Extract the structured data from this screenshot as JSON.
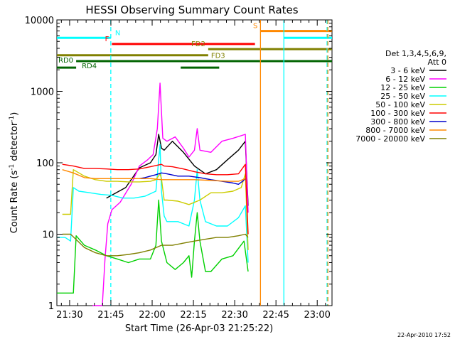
{
  "chart_data": {
    "type": "line",
    "title": "HESSI Observing Summary Count Rates",
    "xlabel": "Start Time (26-Apr-03 21:25:22)",
    "ylabel": "Count Rate (s⁻¹ detector⁻¹)",
    "ylabel_parts": [
      "Count Rate (s",
      "-1",
      " detector",
      "-1",
      ")"
    ],
    "x_unit": "minutes since 21:25:22",
    "xlim": [
      0,
      100
    ],
    "ylim": [
      1,
      10000
    ],
    "yscale": "log",
    "grid": false,
    "x_ticks": [
      {
        "value": 4.63,
        "label": "21:30"
      },
      {
        "value": 19.63,
        "label": "21:45"
      },
      {
        "value": 34.63,
        "label": "22:00"
      },
      {
        "value": 49.63,
        "label": "22:15"
      },
      {
        "value": 64.63,
        "label": "22:30"
      },
      {
        "value": 79.63,
        "label": "22:45"
      },
      {
        "value": 94.63,
        "label": "23:00"
      }
    ],
    "y_ticks": [
      {
        "value": 1,
        "label": "1"
      },
      {
        "value": 10,
        "label": "10"
      },
      {
        "value": 100,
        "label": "100"
      },
      {
        "value": 1000,
        "label": "1000"
      },
      {
        "value": 10000,
        "label": "10000"
      }
    ],
    "legend": {
      "placement": "right",
      "header": [
        "Det 1,3,4,5,6,9,",
        "Att 0"
      ]
    },
    "series": [
      {
        "name": "3 - 6 keV",
        "color": "#000000",
        "x": [
          18,
          25,
          30,
          34,
          36,
          37,
          38,
          39,
          42,
          46,
          50,
          54,
          58,
          62,
          66,
          68.5,
          69.5
        ],
        "y": [
          32,
          45,
          85,
          100,
          130,
          250,
          160,
          150,
          200,
          140,
          90,
          70,
          80,
          110,
          150,
          200,
          25
        ]
      },
      {
        "name": "6 - 12 keV",
        "color": "#ff00ff",
        "x": [
          13,
          16.5,
          17.5,
          18.5,
          20,
          23,
          27,
          30,
          33,
          35,
          36.5,
          37.5,
          38.5,
          40,
          43,
          46,
          48,
          50,
          51,
          52,
          56,
          60,
          64,
          68.5,
          69.5
        ],
        "y": [
          1,
          1,
          4.5,
          14,
          22,
          28,
          50,
          90,
          110,
          130,
          300,
          1300,
          220,
          200,
          230,
          160,
          120,
          150,
          300,
          150,
          140,
          200,
          220,
          250,
          20
        ]
      },
      {
        "name": "12 - 25 keV",
        "color": "#00d000",
        "x": [
          0,
          6,
          7,
          10,
          14,
          18,
          22,
          26,
          30,
          34,
          36,
          37,
          38,
          40,
          43,
          46,
          48,
          49,
          50,
          51,
          52,
          54,
          56,
          60,
          64,
          68,
          69.5
        ],
        "y": [
          1.5,
          1.5,
          9.5,
          7,
          6,
          5,
          4.5,
          4,
          4.5,
          4.5,
          7,
          30,
          8,
          4,
          3.2,
          4,
          5,
          2.5,
          8,
          20,
          8,
          3,
          3,
          4.5,
          5,
          8,
          3
        ]
      },
      {
        "name": "25 - 50 keV",
        "color": "#00ffff",
        "x": [
          0,
          3,
          5,
          6,
          8,
          12,
          16,
          20,
          24,
          28,
          32,
          36,
          37.5,
          38,
          39,
          40,
          44,
          48,
          50,
          51,
          52,
          54,
          58,
          62,
          66,
          68.5,
          69.5
        ],
        "y": [
          9,
          9,
          8,
          45,
          40,
          38,
          36,
          35,
          32,
          32,
          34,
          40,
          180,
          40,
          18,
          15,
          15,
          13,
          30,
          80,
          30,
          15,
          13,
          13,
          17,
          25,
          4
        ]
      },
      {
        "name": "50 - 100 keV",
        "color": "#cccc00",
        "x": [
          2,
          5,
          6,
          10,
          14,
          18,
          22,
          26,
          30,
          34,
          36,
          37.5,
          38,
          39,
          40,
          44,
          48,
          52,
          56,
          60,
          64,
          67,
          68.5,
          69.5
        ],
        "y": [
          19,
          19,
          80,
          65,
          58,
          55,
          55,
          54,
          54,
          55,
          58,
          70,
          60,
          30,
          30,
          29,
          26,
          30,
          38,
          38,
          40,
          45,
          70,
          6
        ]
      },
      {
        "name": "100 - 300 keV",
        "color": "#ff0000",
        "x": [
          2,
          6,
          10,
          14,
          18,
          22,
          26,
          30,
          34,
          38,
          39,
          42,
          46,
          50,
          54,
          58,
          62,
          66,
          68.5,
          69.5
        ],
        "y": [
          95,
          90,
          83,
          83,
          82,
          80,
          80,
          82,
          88,
          95,
          90,
          88,
          82,
          75,
          70,
          68,
          68,
          70,
          95,
          10
        ]
      },
      {
        "name": "300 - 800 keV",
        "color": "#0000cc",
        "x": [
          30,
          32,
          34,
          36,
          38,
          40,
          44,
          48,
          52,
          56,
          60,
          64,
          66,
          67.5,
          68.5
        ],
        "y": [
          60,
          62,
          65,
          68,
          72,
          70,
          65,
          65,
          62,
          58,
          55,
          52,
          50,
          55,
          60
        ]
      },
      {
        "name": "800 - 7000 keV",
        "color": "#ff8800",
        "x": [
          2,
          6,
          10,
          14,
          18,
          22,
          26,
          30,
          34,
          38,
          42,
          46,
          50,
          54,
          58,
          62,
          66,
          68.5
        ],
        "y": [
          80,
          72,
          62,
          60,
          60,
          60,
          60,
          60,
          60,
          58,
          58,
          58,
          58,
          57,
          56,
          55,
          55,
          60
        ]
      },
      {
        "name": "7000 - 20000 keV",
        "color": "#808000",
        "x": [
          2,
          5,
          10,
          14,
          18,
          22,
          26,
          30,
          34,
          38,
          42,
          46,
          50,
          54,
          58,
          62,
          66,
          68.5,
          69.5
        ],
        "y": [
          10,
          10,
          6.5,
          5.5,
          5,
          5,
          5.2,
          5.5,
          6,
          7,
          7,
          7.5,
          8,
          8.5,
          9,
          9,
          9.5,
          10,
          9
        ]
      }
    ],
    "flag_bars": [
      {
        "label": "N",
        "color": "#00ffff",
        "x": [
          0,
          19.6
        ],
        "y": 5600
      },
      {
        "label": "N",
        "color": "#00ffff",
        "x": [
          82.5,
          100
        ],
        "y": 5600
      },
      {
        "label": "F",
        "color": "#ff0000",
        "x": [
          20,
          72
        ],
        "y": 4600
      },
      {
        "label": "S",
        "color": "#ff8800",
        "x": [
          74,
          100
        ],
        "y": 7000
      },
      {
        "label": "FD2",
        "color": "#808000",
        "x": [
          55,
          100
        ],
        "y": 3900
      },
      {
        "label": "FD3",
        "color": "#808000",
        "x": [
          0,
          55
        ],
        "y": 3200
      },
      {
        "label": "RD0",
        "color": "#006400",
        "x": [
          7,
          100
        ],
        "y": 2650
      },
      {
        "label": "RD4",
        "color": "#006400",
        "x": [
          0,
          7
        ],
        "y": 2150
      },
      {
        "label": "RD4",
        "color": "#006400",
        "x": [
          45,
          59
        ],
        "y": 2150
      }
    ],
    "vertical_markers": [
      {
        "x": 19.6,
        "color": "#00ffff",
        "style": "dashed"
      },
      {
        "x": 74,
        "color": "#ff8800",
        "style": "solid"
      },
      {
        "x": 82.5,
        "color": "#00ffff",
        "style": "solid"
      },
      {
        "x": 98.2,
        "color": "#00ffff",
        "style": "dashed"
      },
      {
        "x": 98.5,
        "color": "#ff8800",
        "style": "dashed"
      }
    ],
    "footer_timestamp": "22-Apr-2010 17:52"
  }
}
